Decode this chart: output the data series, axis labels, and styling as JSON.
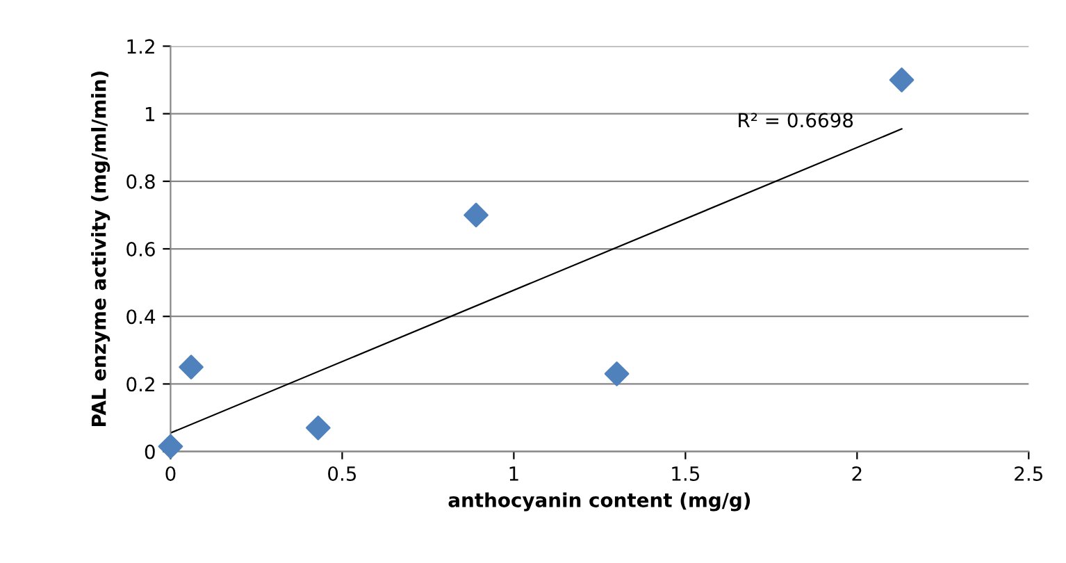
{
  "chart_data": {
    "type": "scatter",
    "xlabel": "anthocyanin content (mg/g)",
    "ylabel": "PAL enzyme activity (mg/ml/min)",
    "x": [
      0,
      0.06,
      0.43,
      0.89,
      1.3,
      2.13
    ],
    "series": [
      {
        "color": "#4f81bd",
        "values": [
          0.015,
          0.25,
          0.07,
          0.7,
          0.23,
          1.1
        ],
        "marker": "diamond"
      },
      {
        "type": "line",
        "color": "#000000",
        "x": [
          0,
          2.13
        ],
        "values": [
          0.055,
          0.955
        ],
        "marker": "none",
        "line_style": "solid"
      }
    ],
    "annotations": [
      "R² = 0.6698"
    ],
    "xlim": [
      0,
      2.5
    ],
    "xticks": [
      0,
      0.5,
      1,
      1.5,
      2,
      2.5
    ],
    "ylim": [
      0,
      1.2
    ],
    "yticks": [
      0,
      0.2,
      0.4,
      0.6,
      0.8,
      1,
      1.2
    ],
    "grid": "y",
    "legend": false
  }
}
